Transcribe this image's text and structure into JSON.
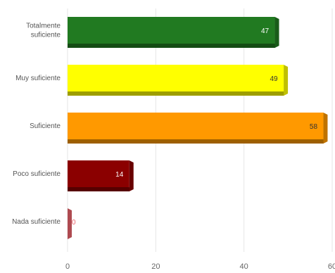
{
  "chart_data": {
    "type": "bar",
    "orientation": "horizontal",
    "style": "3d",
    "categories": [
      [
        "Totalmente",
        "suficiente"
      ],
      [
        "Muy suficiente"
      ],
      [
        "Suficiente"
      ],
      [
        "Poco suficiente"
      ],
      [
        "Nada suficiente"
      ]
    ],
    "values": [
      47,
      49,
      58,
      14,
      0
    ],
    "colors": [
      "#217a21",
      "#ffff00",
      "#ff9900",
      "#8b0000",
      "#e8626a"
    ],
    "data_label_colors": [
      "#ffffff",
      "#333333",
      "#333333",
      "#ffffff",
      "#e8626a"
    ],
    "xlim": [
      0,
      60
    ],
    "xticks": [
      0,
      20,
      40,
      60
    ],
    "grid": true,
    "legend": "none",
    "title": "",
    "xlabel": "",
    "ylabel": ""
  }
}
